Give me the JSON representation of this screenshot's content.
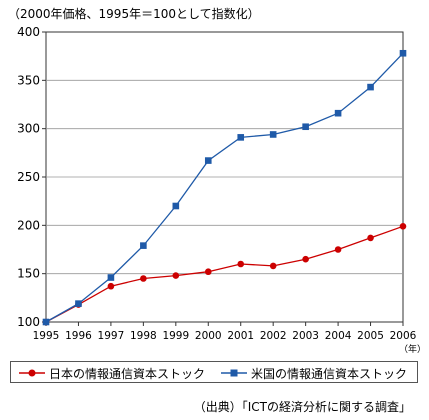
{
  "chart_data": {
    "type": "line",
    "unit_note": "（2000年価格、1995年＝100として指数化）",
    "x_unit": "（年）",
    "source": "（出典）「ICTの経済分析に関する調査」",
    "categories": [
      "1995",
      "1996",
      "1997",
      "1998",
      "1999",
      "2000",
      "2001",
      "2002",
      "2003",
      "2004",
      "2005",
      "2006"
    ],
    "ylim": [
      100,
      400
    ],
    "yticks": [
      100,
      150,
      200,
      250,
      300,
      350,
      400
    ],
    "grid": "horizontal",
    "legend_position": "bottom",
    "series": [
      {
        "name": "日本の情報通信資本ストック",
        "color": "#cc0000",
        "marker": "circle",
        "values": [
          100,
          118,
          137,
          145,
          148,
          152,
          160,
          158,
          165,
          175,
          187,
          199
        ]
      },
      {
        "name": "米国の情報通信資本ストック",
        "color": "#1f5aa8",
        "marker": "square",
        "values": [
          100,
          119,
          146,
          179,
          220,
          267,
          291,
          294,
          302,
          316,
          343,
          378
        ]
      }
    ]
  }
}
